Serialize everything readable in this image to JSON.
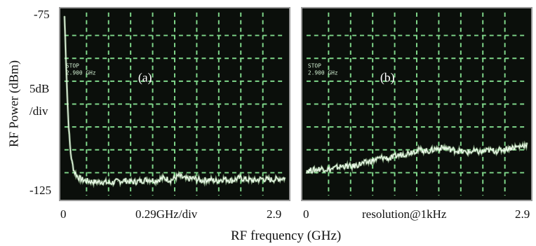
{
  "chart_data": [
    {
      "type": "line",
      "panel_label": "(a)",
      "screen_text": [
        "STOP",
        "2.900 GHz"
      ],
      "xlim": [
        0,
        2.9
      ],
      "ylim": [
        -125,
        -75
      ],
      "x_ticks": [
        "0",
        "0.29GHz/div",
        "2.9"
      ],
      "series": [
        {
          "x": [
            0.0,
            0.02,
            0.04,
            0.06,
            0.08,
            0.1,
            0.13,
            0.16,
            0.2,
            0.25,
            0.3,
            0.4,
            0.5,
            0.6,
            0.7,
            0.8,
            0.9,
            1.0,
            1.1,
            1.2,
            1.3,
            1.4,
            1.5,
            1.6,
            1.7,
            1.8,
            1.9,
            2.0,
            2.1,
            2.2,
            2.3,
            2.4,
            2.5,
            2.6,
            2.7,
            2.8,
            2.9
          ],
          "y": [
            -76,
            -88,
            -100,
            -108,
            -113,
            -116,
            -118.5,
            -119.5,
            -120.3,
            -120.8,
            -121.0,
            -121.3,
            -121.2,
            -121.6,
            -121.1,
            -120.9,
            -121.3,
            -121.0,
            -120.6,
            -120.9,
            -120.2,
            -120.8,
            -119.6,
            -120.5,
            -120.3,
            -120.9,
            -120.6,
            -121.0,
            -120.4,
            -120.9,
            -120.2,
            -120.6,
            -120.9,
            -120.4,
            -120.7,
            -120.5,
            -120.2
          ]
        }
      ]
    },
    {
      "type": "line",
      "panel_label": "(b)",
      "screen_text": [
        "STOP",
        "2.900 GHz"
      ],
      "xlim": [
        0,
        2.9
      ],
      "ylim": [
        -125,
        -75
      ],
      "x_ticks": [
        "0",
        "resolution@1kHz",
        "2.9"
      ],
      "series": [
        {
          "x": [
            0.0,
            0.1,
            0.2,
            0.3,
            0.4,
            0.5,
            0.6,
            0.7,
            0.8,
            0.9,
            1.0,
            1.1,
            1.2,
            1.3,
            1.4,
            1.5,
            1.6,
            1.7,
            1.8,
            1.9,
            2.0,
            2.1,
            2.2,
            2.3,
            2.4,
            2.5,
            2.6,
            2.7,
            2.8,
            2.9
          ],
          "y": [
            -118.2,
            -118.0,
            -117.6,
            -117.9,
            -117.3,
            -116.9,
            -117.1,
            -116.4,
            -115.9,
            -115.2,
            -114.6,
            -114.9,
            -114.0,
            -113.6,
            -112.9,
            -112.5,
            -112.9,
            -112.2,
            -111.9,
            -112.4,
            -112.8,
            -113.2,
            -112.9,
            -113.1,
            -112.6,
            -112.8,
            -112.3,
            -111.9,
            -111.6,
            -111.0
          ]
        }
      ]
    }
  ],
  "y_axis": {
    "label": "RF Power (dBm)",
    "top": "-75",
    "bottom": "-125",
    "scale_line1": "5dB",
    "scale_line2": "/div"
  },
  "x_axis_label": "RF frequency (GHz)",
  "colors": {
    "trace": "#c9f5c0",
    "grid": "#7fd68a",
    "screen_bg": "#0b0f0b",
    "screen_text": "#cfeccf"
  }
}
